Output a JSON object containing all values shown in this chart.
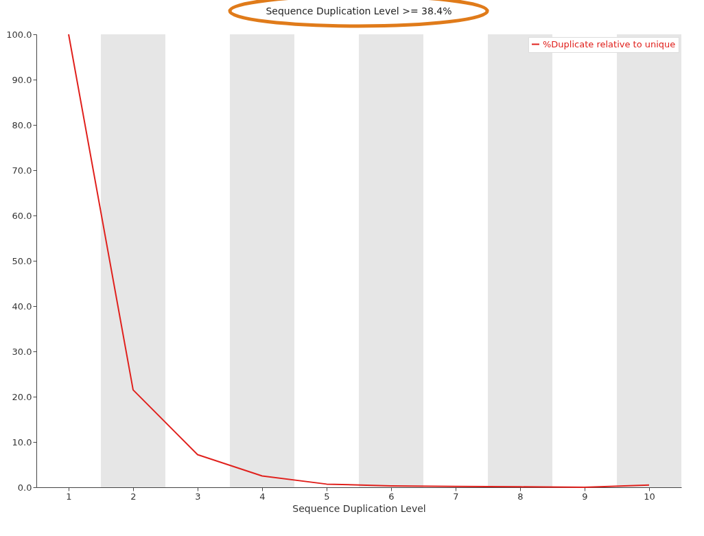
{
  "chart_data": {
    "type": "line",
    "title": "Sequence Duplication Level >= 38.4%",
    "xlabel": "Sequence Duplication Level",
    "x": [
      1,
      2,
      3,
      4,
      5,
      6,
      7,
      8,
      9,
      10
    ],
    "series": [
      {
        "name": "%Duplicate relative to unique",
        "color": "#e0201c",
        "values": [
          100,
          21.5,
          7.2,
          2.5,
          0.7,
          0.3,
          0.2,
          0.1,
          0.0,
          0.5
        ]
      }
    ],
    "xlim": [
      0.5,
      10.5
    ],
    "xticks": [
      1,
      2,
      3,
      4,
      5,
      6,
      7,
      8,
      9,
      10
    ],
    "ylim": [
      0,
      100
    ],
    "yticks": [
      {
        "value": 0,
        "label": "0.0"
      },
      {
        "value": 10,
        "label": "10.0"
      },
      {
        "value": 20,
        "label": "20.0"
      },
      {
        "value": 30,
        "label": "30.0"
      },
      {
        "value": 40,
        "label": "40.0"
      },
      {
        "value": 50,
        "label": "50.0"
      },
      {
        "value": 60,
        "label": "60.0"
      },
      {
        "value": 70,
        "label": "70.0"
      },
      {
        "value": 80,
        "label": "80.0"
      },
      {
        "value": 90,
        "label": "90.0"
      },
      {
        "value": 100,
        "label": "100.0"
      }
    ],
    "bands": [
      {
        "axis": "x",
        "from": 1.5,
        "to": 2.5,
        "color": "#e6e6e6"
      },
      {
        "axis": "x",
        "from": 3.5,
        "to": 4.5,
        "color": "#e6e6e6"
      },
      {
        "axis": "x",
        "from": 5.5,
        "to": 6.5,
        "color": "#e6e6e6"
      },
      {
        "axis": "x",
        "from": 7.5,
        "to": 8.5,
        "color": "#e6e6e6"
      },
      {
        "axis": "x",
        "from": 9.5,
        "to": 10.5,
        "color": "#e6e6e6"
      }
    ],
    "grid": false,
    "legend": "top right",
    "marker": "none",
    "line_style": "solid"
  }
}
